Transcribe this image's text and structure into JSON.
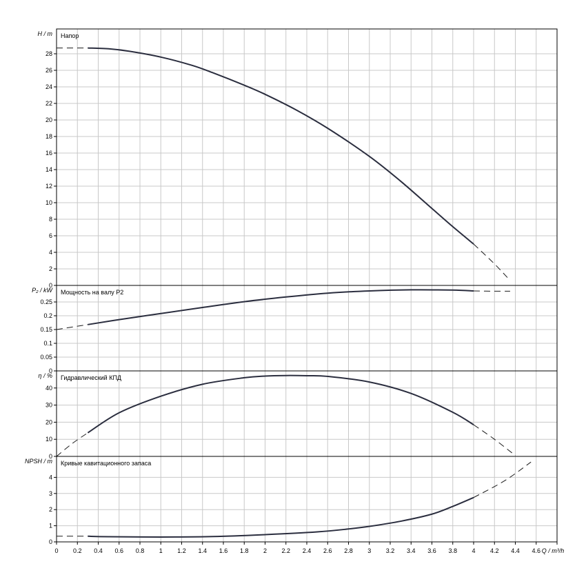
{
  "chart_data": {
    "type": "line",
    "x_axis": {
      "label": "Q / m³/h",
      "min": 0,
      "max": 4.8,
      "ticks": [
        0,
        0.2,
        0.4,
        0.6,
        0.8,
        1,
        1.2,
        1.4,
        1.6,
        1.8,
        2,
        2.2,
        2.4,
        2.6,
        2.8,
        3,
        3.2,
        3.4,
        3.6,
        3.8,
        4,
        4.2,
        4.4,
        4.6,
        4.8
      ],
      "tick_labels": [
        "0",
        "0.2",
        "0.4",
        "0.6",
        "0.8",
        "1",
        "1.2",
        "1.4",
        "1.6",
        "1.8",
        "2",
        "2.2",
        "2.4",
        "2.6",
        "2.8",
        "3",
        "3.2",
        "3.4",
        "3.6",
        "3.8",
        "4",
        "4.2",
        "4.4",
        "4.6",
        "Q / m³/h"
      ]
    },
    "panels": [
      {
        "id": "head",
        "title": "Напор",
        "ylabel": "H / m",
        "ylim": [
          0,
          31
        ],
        "yticks": [
          0,
          2,
          4,
          6,
          8,
          10,
          12,
          14,
          16,
          18,
          20,
          22,
          24,
          26,
          28
        ],
        "ytick_labels": [
          "0",
          "2",
          "4",
          "6",
          "8",
          "10",
          "12",
          "14",
          "16",
          "18",
          "20",
          "22",
          "24",
          "26",
          "28"
        ],
        "dash_left": {
          "x": [
            0,
            0.3
          ],
          "y": [
            28.7,
            28.7
          ]
        },
        "solid": {
          "x": [
            0.3,
            0.5,
            0.7,
            1.0,
            1.3,
            1.5,
            1.8,
            2.0,
            2.3,
            2.6,
            3.0,
            3.3,
            3.6,
            3.8,
            4.0
          ],
          "y": [
            28.7,
            28.6,
            28.3,
            27.6,
            26.6,
            25.7,
            24.2,
            23.1,
            21.2,
            19.0,
            15.6,
            12.6,
            9.3,
            7.1,
            5.0
          ]
        },
        "dash_right": {
          "x": [
            4.0,
            4.2,
            4.35
          ],
          "y": [
            5.0,
            2.6,
            0.6
          ]
        }
      },
      {
        "id": "power",
        "title": "Мощность на валу P2",
        "ylabel": "P₂ / kW",
        "ylim": [
          0,
          0.31
        ],
        "yticks": [
          0,
          0.05,
          0.1,
          0.15,
          0.2,
          0.25
        ],
        "ytick_labels": [
          "0",
          "0.05",
          "0.1",
          "0.15",
          "0.2",
          "0.25"
        ],
        "dash_left": {
          "x": [
            0,
            0.3
          ],
          "y": [
            0.15,
            0.168
          ]
        },
        "solid": {
          "x": [
            0.3,
            0.6,
            1.0,
            1.4,
            1.8,
            2.2,
            2.6,
            3.0,
            3.4,
            3.8,
            4.0
          ],
          "y": [
            0.168,
            0.186,
            0.208,
            0.23,
            0.251,
            0.268,
            0.282,
            0.29,
            0.294,
            0.293,
            0.29
          ]
        },
        "dash_right": {
          "x": [
            4.0,
            4.2,
            4.35
          ],
          "y": [
            0.29,
            0.289,
            0.289
          ]
        }
      },
      {
        "id": "efficiency",
        "title": "Гидравлический КПД",
        "ylabel": "η / %",
        "ylim": [
          0,
          50
        ],
        "yticks": [
          0,
          10,
          20,
          30,
          40
        ],
        "ytick_labels": [
          "0",
          "10",
          "20",
          "30",
          "40"
        ],
        "dash_left": {
          "x": [
            0,
            0.15,
            0.3
          ],
          "y": [
            0,
            7.5,
            13.8
          ]
        },
        "solid": {
          "x": [
            0.3,
            0.6,
            1.0,
            1.4,
            1.8,
            2.0,
            2.2,
            2.4,
            2.6,
            3.0,
            3.4,
            3.8,
            4.0
          ],
          "y": [
            13.8,
            25.5,
            35.2,
            42.2,
            46.0,
            47.0,
            47.3,
            47.2,
            46.8,
            43.5,
            36.8,
            25.8,
            18.5
          ]
        },
        "dash_right": {
          "x": [
            4.0,
            4.2,
            4.4
          ],
          "y": [
            18.5,
            10.0,
            0.5
          ]
        }
      },
      {
        "id": "npsh",
        "title": "Кривые кавитационного запаса",
        "ylabel": "NPSH / m",
        "ylim": [
          0,
          5.3
        ],
        "yticks": [
          0,
          1,
          2,
          3,
          4
        ],
        "ytick_labels": [
          "0",
          "1",
          "2",
          "3",
          "4"
        ],
        "dash_left": {
          "x": [
            0,
            0.3
          ],
          "y": [
            0.35,
            0.35
          ]
        },
        "solid": {
          "x": [
            0.3,
            0.5,
            1.0,
            1.5,
            2.0,
            2.5,
            2.8,
            3.0,
            3.3,
            3.6,
            3.8,
            4.0
          ],
          "y": [
            0.35,
            0.32,
            0.3,
            0.33,
            0.45,
            0.62,
            0.8,
            0.96,
            1.28,
            1.72,
            2.2,
            2.75
          ]
        },
        "dash_right": {
          "x": [
            4.0,
            4.3,
            4.55
          ],
          "y": [
            2.75,
            3.8,
            4.95
          ]
        }
      }
    ]
  }
}
